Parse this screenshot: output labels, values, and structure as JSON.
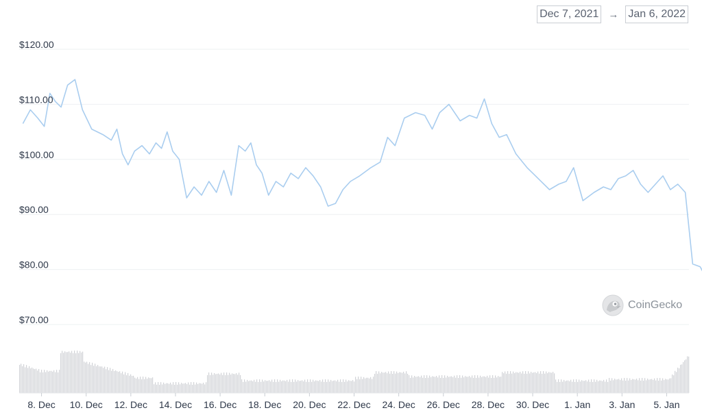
{
  "date_range": {
    "start": "Dec 7, 2021",
    "arrow": "→",
    "end": "Jan 6, 2022"
  },
  "watermark": {
    "text": "CoinGecko",
    "icon": "coingecko-logo-icon"
  },
  "colors": {
    "line": "#a9cdef",
    "volume": "#d0d2d6",
    "grid": "#eef0f2"
  },
  "chart_data": {
    "type": "line",
    "title": "",
    "xlabel": "",
    "ylabel": "",
    "ylim": [
      70,
      120
    ],
    "xlim": [
      "2021-12-07",
      "2022-01-06"
    ],
    "y_ticks": [
      "$120.00",
      "$110.00",
      "$100.00",
      "$90.00",
      "$80.00",
      "$70.00"
    ],
    "x_ticks": [
      "8. Dec",
      "10. Dec",
      "12. Dec",
      "14. Dec",
      "16. Dec",
      "18. Dec",
      "20. Dec",
      "22. Dec",
      "24. Dec",
      "26. Dec",
      "28. Dec",
      "30. Dec",
      "1. Jan",
      "3. Jan",
      "5. Jan"
    ],
    "grid": true,
    "legend": "none",
    "series": [
      {
        "points": [
          [
            "Dec 7",
            106.5
          ],
          [
            "Dec 7",
            109.0
          ],
          [
            "Dec 7",
            107.5
          ],
          [
            "Dec 8",
            106.0
          ],
          [
            "Dec 8",
            112.0
          ],
          [
            "Dec 8",
            110.5
          ],
          [
            "Dec 8",
            109.5
          ],
          [
            "Dec 9",
            113.5
          ],
          [
            "Dec 9",
            114.5
          ],
          [
            "Dec 9",
            109.0
          ],
          [
            "Dec 10",
            105.5
          ],
          [
            "Dec 10",
            104.5
          ],
          [
            "Dec 11",
            103.5
          ],
          [
            "Dec 11",
            105.5
          ],
          [
            "Dec 11",
            101.0
          ],
          [
            "Dec 11",
            99.0
          ],
          [
            "Dec 12",
            101.5
          ],
          [
            "Dec 12",
            102.5
          ],
          [
            "Dec 12",
            101.0
          ],
          [
            "Dec 13",
            103.0
          ],
          [
            "Dec 13",
            102.0
          ],
          [
            "Dec 13",
            105.0
          ],
          [
            "Dec 13",
            101.5
          ],
          [
            "Dec 14",
            100.0
          ],
          [
            "Dec 14",
            93.0
          ],
          [
            "Dec 14",
            95.0
          ],
          [
            "Dec 15",
            93.5
          ],
          [
            "Dec 15",
            96.0
          ],
          [
            "Dec 15",
            94.0
          ],
          [
            "Dec 16",
            98.0
          ],
          [
            "Dec 16",
            93.5
          ],
          [
            "Dec 16",
            102.5
          ],
          [
            "Dec 17",
            101.5
          ],
          [
            "Dec 17",
            103.0
          ],
          [
            "Dec 17",
            99.0
          ],
          [
            "Dec 17",
            97.5
          ],
          [
            "Dec 18",
            93.5
          ],
          [
            "Dec 18",
            96.0
          ],
          [
            "Dec 18",
            95.0
          ],
          [
            "Dec 19",
            97.5
          ],
          [
            "Dec 19",
            96.5
          ],
          [
            "Dec 19",
            98.5
          ],
          [
            "Dec 20",
            97.0
          ],
          [
            "Dec 20",
            95.0
          ],
          [
            "Dec 20",
            91.5
          ],
          [
            "Dec 21",
            92.0
          ],
          [
            "Dec 21",
            94.5
          ],
          [
            "Dec 21",
            96.0
          ],
          [
            "Dec 22",
            97.0
          ],
          [
            "Dec 22",
            98.5
          ],
          [
            "Dec 23",
            99.5
          ],
          [
            "Dec 23",
            104.0
          ],
          [
            "Dec 23",
            102.5
          ],
          [
            "Dec 24",
            107.5
          ],
          [
            "Dec 24",
            108.5
          ],
          [
            "Dec 25",
            108.0
          ],
          [
            "Dec 25",
            105.5
          ],
          [
            "Dec 25",
            108.5
          ],
          [
            "Dec 26",
            110.0
          ],
          [
            "Dec 26",
            107.0
          ],
          [
            "Dec 27",
            108.0
          ],
          [
            "Dec 27",
            107.5
          ],
          [
            "Dec 27",
            111.0
          ],
          [
            "Dec 28",
            106.5
          ],
          [
            "Dec 28",
            104.0
          ],
          [
            "Dec 28",
            104.5
          ],
          [
            "Dec 29",
            101.0
          ],
          [
            "Dec 29",
            98.5
          ],
          [
            "Dec 30",
            96.5
          ],
          [
            "Dec 30",
            94.5
          ],
          [
            "Dec 31",
            95.5
          ],
          [
            "Dec 31",
            96.0
          ],
          [
            "Dec 31",
            98.5
          ],
          [
            "Jan 1",
            92.5
          ],
          [
            "Jan 1",
            94.0
          ],
          [
            "Jan 2",
            95.0
          ],
          [
            "Jan 2",
            94.5
          ],
          [
            "Jan 2",
            96.5
          ],
          [
            "Jan 3",
            97.0
          ],
          [
            "Jan 3",
            98.0
          ],
          [
            "Jan 3",
            95.5
          ],
          [
            "Jan 4",
            94.0
          ],
          [
            "Jan 4",
            95.5
          ],
          [
            "Jan 4",
            97.0
          ],
          [
            "Jan 5",
            94.5
          ],
          [
            "Jan 5",
            95.5
          ],
          [
            "Jan 5",
            94.0
          ],
          [
            "Jan 6",
            81.0
          ],
          [
            "Jan 6",
            80.5
          ],
          [
            "Jan 6",
            78.0
          ]
        ]
      }
    ]
  }
}
